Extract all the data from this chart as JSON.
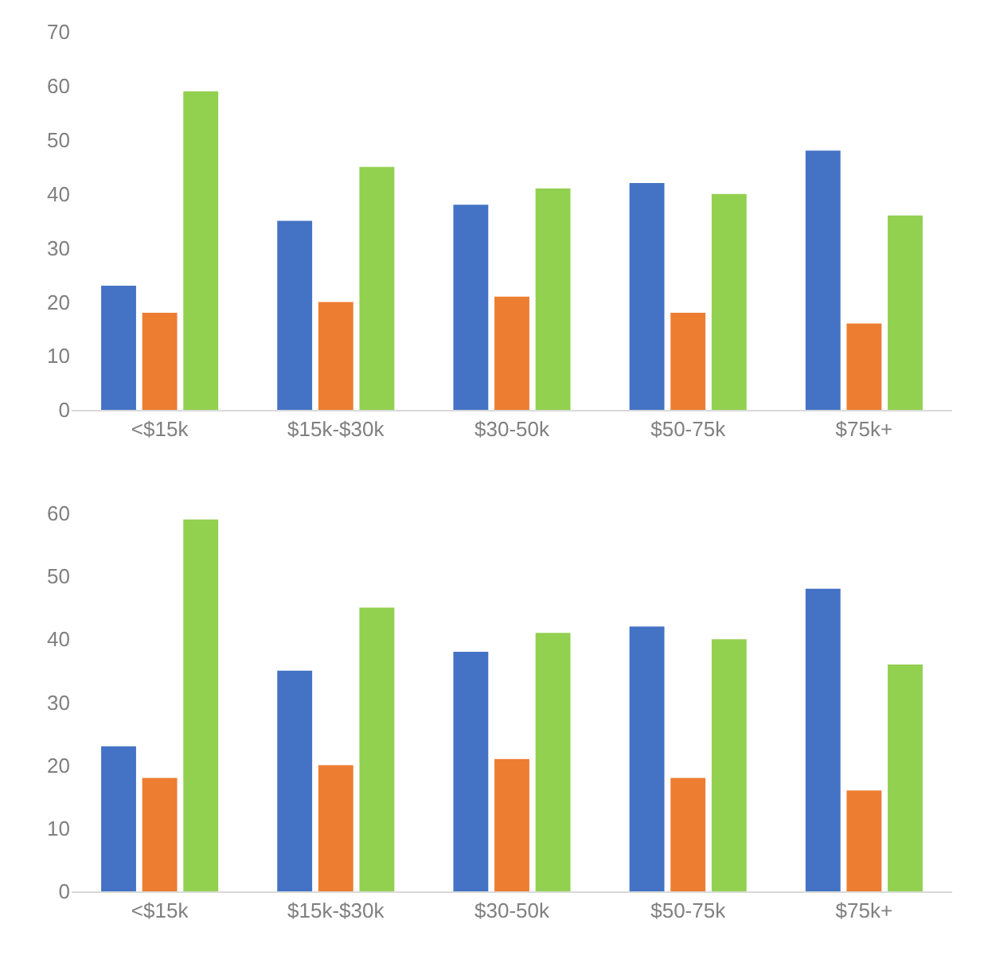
{
  "chart_data": [
    {
      "type": "bar",
      "categories": [
        "<$15k",
        "$15k-$30k",
        "$30-50k",
        "$50-75k",
        "$75k+"
      ],
      "series": [
        {
          "color": "#4472c4",
          "values": [
            23,
            35,
            38,
            42,
            48
          ]
        },
        {
          "color": "#ed7d31",
          "values": [
            18,
            20,
            21,
            18,
            16
          ]
        },
        {
          "color": "#92d050",
          "values": [
            59,
            45,
            41,
            40,
            36
          ]
        }
      ],
      "ylim": [
        0,
        70
      ],
      "yticks": [
        0,
        10,
        20,
        30,
        40,
        50,
        60,
        70
      ],
      "grid": false
    },
    {
      "type": "bar",
      "categories": [
        "<$15k",
        "$15k-$30k",
        "$30-50k",
        "$50-75k",
        "$75k+"
      ],
      "series": [
        {
          "color": "#4472c4",
          "values": [
            23,
            35,
            38,
            42,
            48
          ]
        },
        {
          "color": "#ed7d31",
          "values": [
            18,
            20,
            21,
            18,
            16
          ]
        },
        {
          "color": "#92d050",
          "values": [
            59,
            45,
            41,
            40,
            36
          ]
        }
      ],
      "ylim": [
        0,
        60
      ],
      "yticks": [
        0,
        10,
        20,
        30,
        40,
        50,
        60
      ],
      "grid": false
    }
  ]
}
